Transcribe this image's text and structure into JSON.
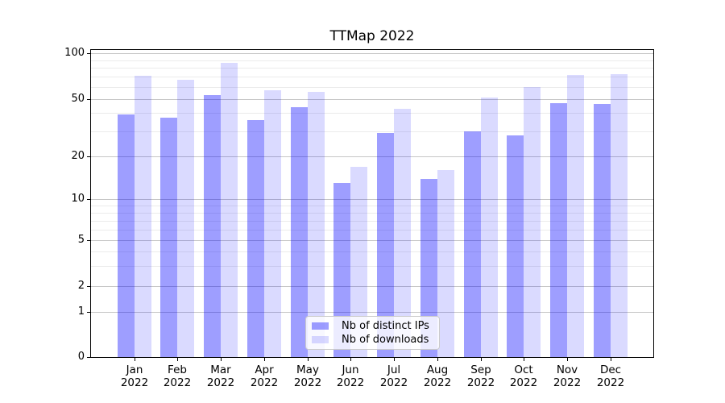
{
  "title": "TTMap 2022",
  "chart_data": {
    "type": "bar",
    "title": "TTMap 2022",
    "months": [
      "Jan",
      "Feb",
      "Mar",
      "Apr",
      "May",
      "Jun",
      "Jul",
      "Aug",
      "Sep",
      "Oct",
      "Nov",
      "Dec"
    ],
    "year": "2022",
    "series": [
      {
        "name": "Nb of distinct IPs",
        "color": "#9c9cf6",
        "fill": "#0000ff61",
        "values": [
          39,
          37,
          53,
          36,
          44,
          13,
          29,
          14,
          30,
          28,
          47,
          46
        ]
      },
      {
        "name": "Nb of downloads",
        "color": "#dadaf9",
        "fill": "#0000ff25",
        "values": [
          71,
          67,
          86,
          57,
          56,
          17,
          43,
          16,
          51,
          60,
          72,
          73
        ]
      }
    ],
    "yscale": "symlog",
    "yticks": [
      100,
      50,
      20,
      10,
      5,
      2,
      1,
      0
    ],
    "minor_yticks": [
      3,
      4,
      6,
      7,
      8,
      9,
      30,
      40,
      60,
      70,
      80,
      90
    ],
    "ylim": [
      0,
      105
    ],
    "grid": true,
    "legend_position": "lower center",
    "colors": {
      "major_grid": "#c6c6c6",
      "minor_grid": "#ebebeb",
      "spine": "#000000",
      "text": "#000000"
    }
  }
}
